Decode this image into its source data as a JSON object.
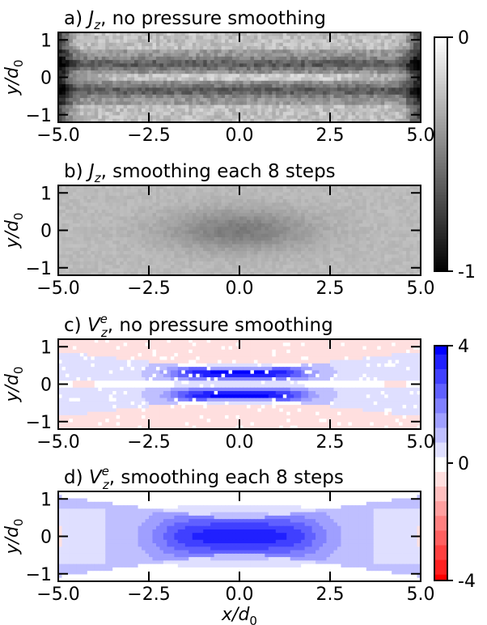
{
  "chart_data": {
    "type": "heatmap",
    "panels": [
      {
        "title_prefix": "a) ",
        "quantity": "J",
        "quantity_sub": "z",
        "quantity_sup": "",
        "title_suffix": ", no pressure smoothing",
        "colormap": "gray",
        "pattern": "jz_unsmoothed",
        "xlim": [
          -5.0,
          5.0
        ],
        "ylim": [
          -1.2,
          1.2
        ],
        "xticks": [
          -5.0,
          -2.5,
          0.0,
          2.5,
          5.0
        ],
        "xtick_labels": [
          "−5.0",
          "−2.5",
          "0.0",
          "2.5",
          "5.0"
        ],
        "yticks": [
          -1,
          0,
          1
        ],
        "ytick_labels": [
          "−1",
          "0",
          "1"
        ],
        "ylabel_main": "y/d",
        "ylabel_sub": "0"
      },
      {
        "title_prefix": "b) ",
        "quantity": "J",
        "quantity_sub": "z",
        "quantity_sup": "",
        "title_suffix": ", smoothing each 8 steps",
        "colormap": "gray",
        "pattern": "jz_smoothed",
        "xlim": [
          -5.0,
          5.0
        ],
        "ylim": [
          -1.2,
          1.2
        ],
        "xticks": [
          -5.0,
          -2.5,
          0.0,
          2.5,
          5.0
        ],
        "xtick_labels": [
          "−5.0",
          "−2.5",
          "0.0",
          "2.5",
          "5.0"
        ],
        "yticks": [
          -1,
          0,
          1
        ],
        "ytick_labels": [
          "−1",
          "0",
          "1"
        ],
        "ylabel_main": "y/d",
        "ylabel_sub": "0"
      },
      {
        "title_prefix": "c) ",
        "quantity": "V",
        "quantity_sub": "z",
        "quantity_sup": "e",
        "title_suffix": ", no pressure smoothing",
        "colormap": "bwr",
        "pattern": "vz_unsmoothed",
        "xlim": [
          -5.0,
          5.0
        ],
        "ylim": [
          -1.2,
          1.2
        ],
        "xticks": [
          -5.0,
          -2.5,
          0.0,
          2.5,
          5.0
        ],
        "xtick_labels": [
          "−5.0",
          "−2.5",
          "0.0",
          "2.5",
          "5.0"
        ],
        "yticks": [
          -1,
          0,
          1
        ],
        "ytick_labels": [
          "−1",
          "0",
          "1"
        ],
        "ylabel_main": "y/d",
        "ylabel_sub": "0"
      },
      {
        "title_prefix": "d) ",
        "quantity": "V",
        "quantity_sub": "z",
        "quantity_sup": "e",
        "title_suffix": ", smoothing each 8 steps",
        "colormap": "bwr",
        "pattern": "vz_smoothed",
        "xlim": [
          -5.0,
          5.0
        ],
        "ylim": [
          -1.2,
          1.2
        ],
        "xticks": [
          -5.0,
          -2.5,
          0.0,
          2.5,
          5.0
        ],
        "xtick_labels": [
          "−5.0",
          "−2.5",
          "0.0",
          "2.5",
          "5.0"
        ],
        "yticks": [
          -1,
          0,
          1
        ],
        "ytick_labels": [
          "−1",
          "0",
          "1"
        ],
        "ylabel_main": "y/d",
        "ylabel_sub": "0",
        "xlabel_main": "x/d",
        "xlabel_sub": "0"
      }
    ],
    "colorbars": [
      {
        "colormap": "gray",
        "vmin": -1,
        "vmax": 0,
        "tick_labels": [
          "0",
          "-1"
        ]
      },
      {
        "colormap": "bwr",
        "vmin": -4,
        "vmax": 4,
        "tick_labels": [
          "4",
          "0",
          "-4"
        ]
      }
    ]
  }
}
